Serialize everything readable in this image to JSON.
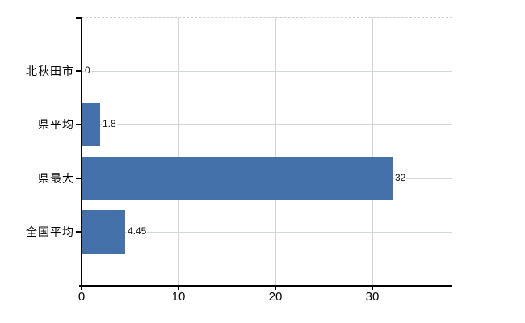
{
  "chart": {
    "title": "",
    "background_color": "#ffffff",
    "bar_color": "#4471a9",
    "axis_color": "#000000",
    "vertical_gridline_color": "#d4d4d4",
    "row_gridline_color": "#d0dad0",
    "top_border_style": "dashed"
  },
  "chart_data": {
    "type": "bar",
    "orientation": "horizontal",
    "title": "",
    "xlabel": "",
    "ylabel": "",
    "categories": [
      "北秋田市",
      "県平均",
      "県最大",
      "全国平均"
    ],
    "values": [
      0,
      1.8,
      32,
      4.45
    ],
    "value_labels": [
      "0",
      "1.8",
      "32",
      "4.45"
    ],
    "x_tick_labels": [
      "0",
      "10",
      "20",
      "30"
    ],
    "x_tick_values": [
      0,
      10,
      20,
      30
    ],
    "xlim": [
      0,
      38.25
    ],
    "grid": true,
    "legend": false
  }
}
